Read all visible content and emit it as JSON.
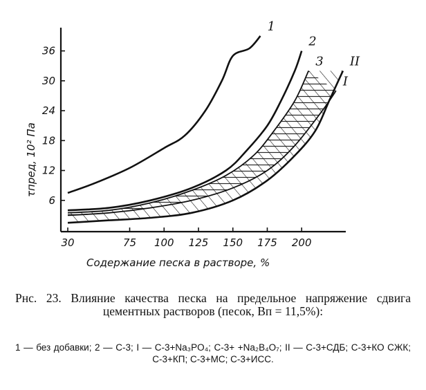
{
  "chart_data": {
    "type": "line",
    "ylabel": "τпред, 10² Па",
    "xlabel": "Содержание песка в растворе, %",
    "xlim": [
      30,
      220
    ],
    "ylim": [
      0,
      39
    ],
    "x_ticks": [
      30,
      75,
      100,
      125,
      150,
      175,
      200
    ],
    "y_ticks": [
      6,
      12,
      18,
      24,
      30,
      36
    ],
    "series": [
      {
        "name": "1",
        "x": [
          30,
          50,
          75,
          100,
          115,
          130,
          142,
          150,
          162,
          170
        ],
        "y": [
          7.5,
          9.5,
          12.5,
          16.5,
          19,
          24,
          30,
          35,
          36.5,
          39
        ]
      },
      {
        "name": "2",
        "x": [
          30,
          60,
          90,
          120,
          145,
          160,
          175,
          185,
          195,
          200
        ],
        "y": [
          4,
          4.5,
          6,
          8.5,
          12,
          16,
          21,
          26,
          32,
          36
        ]
      },
      {
        "name": "3",
        "x": [
          30,
          60,
          90,
          120,
          145,
          165,
          180,
          195,
          205
        ],
        "y": [
          3.5,
          4,
          5.5,
          8,
          11,
          15,
          20,
          26,
          32
        ]
      },
      {
        "name": "I",
        "x": [
          30,
          60,
          90,
          120,
          150,
          175,
          195,
          215,
          225
        ],
        "y": [
          3,
          3.5,
          4.5,
          6,
          8.5,
          12,
          17,
          24,
          28
        ]
      },
      {
        "name": "II",
        "x": [
          30,
          60,
          90,
          120,
          150,
          175,
          195,
          210,
          220,
          230
        ],
        "y": [
          1.5,
          2,
          2.5,
          3.5,
          6,
          10,
          15,
          20,
          26,
          32
        ]
      }
    ]
  },
  "caption": {
    "title": "Рнс. 23. Влияние качества песка на предельное напряжение сдвига цементных растворов (песок, Bп = 11,5%):",
    "notes": "1 — без добавки; 2 — С-3; I — С-3+Na₃PO₄; С-3+ +Na₂B₄O₇; II — С-3+СДБ; С-3+КО СЖК; С-3+КП; С-3+МС; С-3+ИСС."
  }
}
